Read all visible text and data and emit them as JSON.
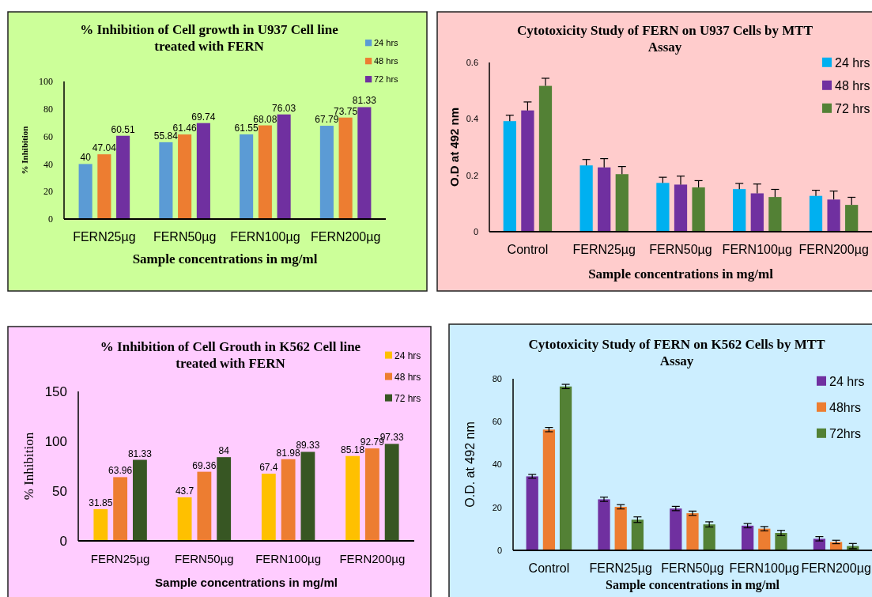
{
  "chart_data": [
    {
      "type": "bar",
      "title": "% Inhibition of Cell growth in U937 Cell line treated with FERN",
      "xlabel": "Sample concentrations in mg/ml",
      "ylabel": "% Inhibition",
      "categories": [
        "FERN25µg",
        "FERN50µg",
        "FERN100µg",
        "FERN200µg"
      ],
      "series": [
        {
          "name": "24 hrs",
          "color": "#5b9bd5",
          "values": [
            40,
            55.84,
            61.55,
            67.79
          ]
        },
        {
          "name": "48 hrs",
          "color": "#ed7d31",
          "values": [
            47.04,
            61.46,
            68.08,
            73.75
          ]
        },
        {
          "name": "72 hrs",
          "color": "#7030a0",
          "values": [
            60.51,
            69.74,
            76.03,
            81.33
          ]
        }
      ],
      "ylim": [
        0,
        100
      ],
      "yticks": [
        0,
        20,
        40,
        60,
        80,
        100
      ],
      "data_labels": true,
      "legend": "top right"
    },
    {
      "type": "bar",
      "title": "Cytotoxicity Study of FERN on U937 Cells by MTT Assay",
      "xlabel": "Sample concentrations in mg/ml",
      "ylabel": "O.D at 492 nm",
      "categories": [
        "Control",
        "FERN25µg",
        "FERN50µg",
        "FERN100µg",
        "FERN200µg"
      ],
      "series": [
        {
          "name": "24 hrs",
          "color": "#00b0f0",
          "values": [
            0.392,
            0.235,
            0.173,
            0.151,
            0.127
          ],
          "errors": [
            [
              0.392,
              0.413
            ],
            [
              0.235,
              0.256
            ],
            [
              0.173,
              0.193
            ],
            [
              0.151,
              0.171
            ],
            [
              0.127,
              0.147
            ]
          ]
        },
        {
          "name": "48 hrs",
          "color": "#7030a0",
          "values": [
            0.43,
            0.228,
            0.167,
            0.136,
            0.114
          ],
          "errors": [
            [
              0.43,
              0.46
            ],
            [
              0.228,
              0.259
            ],
            [
              0.167,
              0.197
            ],
            [
              0.136,
              0.169
            ],
            [
              0.114,
              0.144
            ]
          ]
        },
        {
          "name": "72 hrs",
          "color": "#538135",
          "values": [
            0.517,
            0.204,
            0.157,
            0.123,
            0.095
          ],
          "errors": [
            [
              0.517,
              0.544
            ],
            [
              0.204,
              0.231
            ],
            [
              0.157,
              0.181
            ],
            [
              0.123,
              0.15
            ],
            [
              0.095,
              0.122
            ]
          ]
        }
      ],
      "ylim": [
        0,
        0.6
      ],
      "yticks": [
        0,
        0.2,
        0.4,
        0.6
      ],
      "legend": "top right"
    },
    {
      "type": "bar",
      "title": "% Inhibition of Cell Grouth in K562 Cell line treated with FERN",
      "xlabel": "Sample concentrations in mg/ml",
      "ylabel": "% Inhibition",
      "categories": [
        "FERN25µg",
        "FERN50µg",
        "FERN100µg",
        "FERN200µg"
      ],
      "series": [
        {
          "name": "24 hrs",
          "color": "#ffc000",
          "values": [
            31.85,
            43.7,
            67.4,
            85.18
          ]
        },
        {
          "name": "48 hrs",
          "color": "#ed7d31",
          "values": [
            63.96,
            69.36,
            81.98,
            92.79
          ]
        },
        {
          "name": "72 hrs",
          "color": "#375623",
          "values": [
            81.33,
            84,
            89.33,
            97.33
          ]
        }
      ],
      "ylim": [
        0,
        150
      ],
      "yticks": [
        0,
        50,
        100,
        150
      ],
      "data_labels": true,
      "legend": "top right"
    },
    {
      "type": "bar",
      "title": "Cytotoxicity Study of FERN on K562 Cells by MTT Assay",
      "xlabel": "Sample concentrations in mg/ml",
      "ylabel": "O.D. at 492 nm",
      "categories": [
        "Control",
        "FERN25µg",
        "FERN50µg",
        "FERN100µg",
        "FERN200µg"
      ],
      "series": [
        {
          "name": "24 hrs",
          "color": "#7030a0",
          "values": [
            34.5,
            23.8,
            19.5,
            11.5,
            5.4
          ],
          "errors": [
            0.9,
            1,
            1,
            1,
            1
          ]
        },
        {
          "name": "48hrs",
          "color": "#ed7d31",
          "values": [
            56.3,
            20.3,
            17.3,
            10.1,
            3.9
          ],
          "errors": [
            1,
            1,
            1,
            1,
            0.8
          ]
        },
        {
          "name": "72hrs",
          "color": "#538135",
          "values": [
            76.4,
            14.3,
            12.1,
            8.1,
            2.0
          ],
          "errors": [
            1,
            1.3,
            1.2,
            1.2,
            1.2
          ]
        }
      ],
      "ylim": [
        0,
        80
      ],
      "yticks": [
        0,
        20,
        40,
        60,
        80
      ],
      "legend": "top right"
    }
  ]
}
